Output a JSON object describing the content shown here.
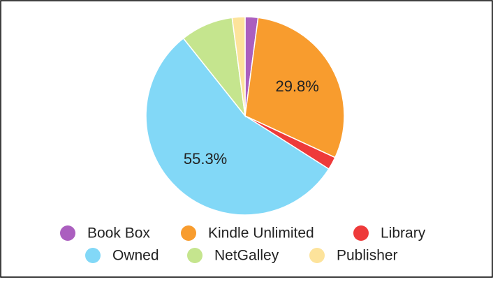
{
  "chart_data": {
    "type": "pie",
    "categories": [
      "Book Box",
      "Kindle Unlimited",
      "Library",
      "Owned",
      "NetGalley",
      "Publisher"
    ],
    "values": [
      2.1,
      29.8,
      2.1,
      55.3,
      8.6,
      2.1
    ],
    "value_labels": [
      null,
      "29.8%",
      null,
      "55.3%",
      null,
      null
    ],
    "colors": [
      "#ab5fbf",
      "#f89c2e",
      "#ee3a3a",
      "#82d8f7",
      "#c5e58e",
      "#fde39b"
    ],
    "legend": "bottom"
  }
}
